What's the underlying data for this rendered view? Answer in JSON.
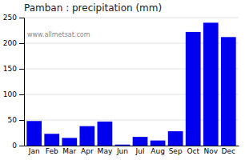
{
  "chart_data": {
    "type": "bar",
    "title": "Pamban : precipitation (mm)",
    "categories": [
      "Jan",
      "Feb",
      "Mar",
      "Apr",
      "May",
      "Jun",
      "Jul",
      "Aug",
      "Sep",
      "Oct",
      "Nov",
      "Dec"
    ],
    "values": [
      48,
      23,
      15,
      38,
      47,
      2,
      17,
      10,
      28,
      222,
      240,
      212
    ],
    "color": "#0000ee",
    "ylim": [
      0,
      250
    ],
    "yticks": [
      0,
      50,
      100,
      150,
      200,
      250
    ],
    "grid": true,
    "annotations": [
      "www.allmetsat.com"
    ]
  }
}
